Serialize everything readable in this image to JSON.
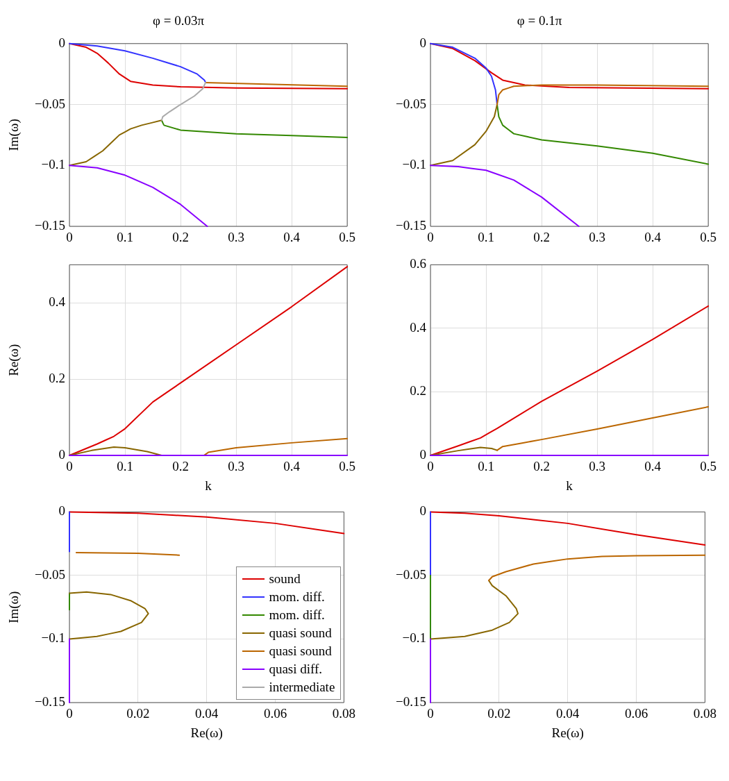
{
  "chart_data": [
    {
      "type": "line",
      "title": "φ = 0.03π",
      "ylabel": "Im(ω)",
      "xlim": [
        0,
        0.5
      ],
      "ylim": [
        -0.15,
        0
      ],
      "xticks": [
        0,
        0.1,
        0.2,
        0.3,
        0.4,
        0.5
      ],
      "yticks": [
        -0.15,
        -0.1,
        -0.05,
        0
      ],
      "grid": true,
      "series": [
        {
          "color": "#dd0000",
          "x": [
            0,
            0.03,
            0.05,
            0.07,
            0.09,
            0.11,
            0.15,
            0.2,
            0.3,
            0.5
          ],
          "values": [
            0,
            -0.003,
            -0.008,
            -0.016,
            -0.025,
            -0.031,
            -0.034,
            -0.0355,
            -0.0365,
            -0.037
          ]
        },
        {
          "color": "#3333ff",
          "x": [
            0,
            0.05,
            0.1,
            0.15,
            0.2,
            0.23,
            0.243,
            0.245
          ],
          "values": [
            0,
            -0.002,
            -0.006,
            -0.012,
            -0.019,
            -0.025,
            -0.03,
            -0.032
          ]
        },
        {
          "color": "#338800",
          "x": [
            0.166,
            0.17,
            0.2,
            0.3,
            0.4,
            0.5
          ],
          "values": [
            -0.063,
            -0.067,
            -0.071,
            -0.074,
            -0.0755,
            -0.077
          ]
        },
        {
          "color": "#886600",
          "x": [
            0,
            0.03,
            0.06,
            0.09,
            0.11,
            0.13,
            0.166
          ],
          "values": [
            -0.1,
            -0.097,
            -0.088,
            -0.075,
            -0.07,
            -0.067,
            -0.063
          ]
        },
        {
          "color": "#bb6600",
          "x": [
            0.245,
            0.5
          ],
          "values": [
            -0.032,
            -0.035
          ]
        },
        {
          "color": "#8800ff",
          "x": [
            0,
            0.05,
            0.1,
            0.15,
            0.2,
            0.248
          ],
          "values": [
            -0.1,
            -0.102,
            -0.108,
            -0.118,
            -0.132,
            -0.15
          ]
        },
        {
          "color": "#aaaaaa",
          "x": [
            0.245,
            0.24,
            0.225,
            0.2,
            0.18,
            0.168,
            0.166
          ],
          "values": [
            -0.032,
            -0.037,
            -0.043,
            -0.05,
            -0.056,
            -0.06,
            -0.063
          ]
        }
      ]
    },
    {
      "type": "line",
      "title": "φ = 0.1π",
      "xlim": [
        0,
        0.5
      ],
      "ylim": [
        -0.15,
        0
      ],
      "xticks": [
        0,
        0.1,
        0.2,
        0.3,
        0.4,
        0.5
      ],
      "yticks": [
        -0.15,
        -0.1,
        -0.05,
        0
      ],
      "grid": true,
      "series": [
        {
          "color": "#dd0000",
          "x": [
            0,
            0.04,
            0.08,
            0.11,
            0.13,
            0.17,
            0.25,
            0.5
          ],
          "values": [
            0,
            -0.004,
            -0.014,
            -0.024,
            -0.03,
            -0.034,
            -0.036,
            -0.037
          ]
        },
        {
          "color": "#3333ff",
          "x": [
            0,
            0.04,
            0.08,
            0.1,
            0.11,
            0.117,
            0.12
          ],
          "values": [
            0,
            -0.003,
            -0.012,
            -0.02,
            -0.027,
            -0.038,
            -0.05
          ]
        },
        {
          "color": "#338800",
          "x": [
            0.12,
            0.123,
            0.13,
            0.15,
            0.2,
            0.3,
            0.4,
            0.5
          ],
          "values": [
            -0.05,
            -0.06,
            -0.067,
            -0.074,
            -0.079,
            -0.084,
            -0.09,
            -0.099
          ]
        },
        {
          "color": "#886600",
          "x": [
            0,
            0.04,
            0.08,
            0.1,
            0.115,
            0.12
          ],
          "values": [
            -0.1,
            -0.096,
            -0.083,
            -0.072,
            -0.06,
            -0.05
          ]
        },
        {
          "color": "#bb6600",
          "x": [
            0.12,
            0.123,
            0.13,
            0.15,
            0.2,
            0.3,
            0.5
          ],
          "values": [
            -0.05,
            -0.042,
            -0.038,
            -0.035,
            -0.034,
            -0.034,
            -0.035
          ]
        },
        {
          "color": "#8800ff",
          "x": [
            0,
            0.05,
            0.1,
            0.15,
            0.2,
            0.267
          ],
          "values": [
            -0.1,
            -0.101,
            -0.104,
            -0.112,
            -0.126,
            -0.15
          ]
        }
      ]
    },
    {
      "type": "line",
      "xlabel": "k",
      "ylabel": "Re(ω)",
      "xlim": [
        0,
        0.5
      ],
      "ylim": [
        0,
        0.5
      ],
      "xticks": [
        0,
        0.1,
        0.2,
        0.3,
        0.4,
        0.5
      ],
      "yticks": [
        0,
        0.2,
        0.4
      ],
      "grid": true,
      "series": [
        {
          "color": "#dd0000",
          "x": [
            0,
            0.05,
            0.08,
            0.1,
            0.15,
            0.2,
            0.3,
            0.4,
            0.5
          ],
          "values": [
            0,
            0.03,
            0.05,
            0.07,
            0.14,
            0.19,
            0.29,
            0.39,
            0.495
          ]
        },
        {
          "color": "#886600",
          "x": [
            0,
            0.04,
            0.08,
            0.1,
            0.14,
            0.166
          ],
          "values": [
            0,
            0.013,
            0.022,
            0.02,
            0.01,
            0
          ]
        },
        {
          "color": "#bb6600",
          "x": [
            0.242,
            0.25,
            0.3,
            0.4,
            0.5
          ],
          "values": [
            0,
            0.008,
            0.02,
            0.033,
            0.044
          ]
        },
        {
          "color": "#8800ff",
          "x": [
            0,
            0.5
          ],
          "values": [
            0,
            0
          ]
        }
      ]
    },
    {
      "type": "line",
      "xlabel": "k",
      "xlim": [
        0,
        0.5
      ],
      "ylim": [
        0,
        0.6
      ],
      "xticks": [
        0,
        0.1,
        0.2,
        0.3,
        0.4,
        0.5
      ],
      "yticks": [
        0,
        0.2,
        0.4,
        0.6
      ],
      "grid": true,
      "series": [
        {
          "color": "#dd0000",
          "x": [
            0,
            0.05,
            0.09,
            0.12,
            0.2,
            0.3,
            0.4,
            0.5
          ],
          "values": [
            0,
            0.03,
            0.055,
            0.085,
            0.17,
            0.265,
            0.365,
            0.47
          ]
        },
        {
          "color": "#886600",
          "x": [
            0,
            0.05,
            0.09,
            0.11,
            0.12
          ],
          "values": [
            0,
            0.015,
            0.025,
            0.022,
            0.016
          ]
        },
        {
          "color": "#bb6600",
          "x": [
            0.12,
            0.13,
            0.2,
            0.3,
            0.4,
            0.5
          ],
          "values": [
            0.016,
            0.028,
            0.05,
            0.083,
            0.118,
            0.153
          ]
        },
        {
          "color": "#8800ff",
          "x": [
            0,
            0.5
          ],
          "values": [
            0,
            0
          ]
        }
      ]
    },
    {
      "type": "line",
      "xlabel": "Re(ω)",
      "ylabel": "Im(ω)",
      "xlim": [
        0,
        0.08
      ],
      "ylim": [
        -0.15,
        0
      ],
      "xticks": [
        0,
        0.02,
        0.04,
        0.06,
        0.08
      ],
      "yticks": [
        -0.15,
        -0.1,
        -0.05,
        0
      ],
      "grid": true,
      "legend": "bottom right",
      "series": [
        {
          "name": "sound",
          "color": "#dd0000",
          "x": [
            0,
            0.02,
            0.04,
            0.06,
            0.08
          ],
          "values": [
            0,
            -0.001,
            -0.004,
            -0.009,
            -0.017
          ]
        },
        {
          "name": "mom. diff.",
          "color": "#3333ff",
          "x": [
            0,
            0
          ],
          "values": [
            0,
            -0.032
          ]
        },
        {
          "name": "mom. diff.",
          "color": "#338800",
          "x": [
            0,
            0
          ],
          "values": [
            -0.063,
            -0.077
          ]
        },
        {
          "name": "quasi sound",
          "color": "#886600",
          "x": [
            0,
            0.005,
            0.012,
            0.018,
            0.022,
            0.023,
            0.021,
            0.015,
            0.008,
            0
          ],
          "values": [
            -0.064,
            -0.063,
            -0.065,
            -0.07,
            -0.076,
            -0.08,
            -0.087,
            -0.094,
            -0.098,
            -0.1
          ]
        },
        {
          "name": "quasi sound",
          "color": "#bb6600",
          "x": [
            0.002,
            0.02,
            0.032
          ],
          "values": [
            -0.032,
            -0.0325,
            -0.034
          ]
        },
        {
          "name": "quasi diff.",
          "color": "#8800ff",
          "x": [
            0,
            0
          ],
          "values": [
            -0.1,
            -0.15
          ]
        },
        {
          "name": "intermediate",
          "color": "#aaaaaa",
          "x": [
            0,
            0
          ],
          "values": [
            -0.032,
            -0.063
          ]
        }
      ]
    },
    {
      "type": "line",
      "xlabel": "Re(ω)",
      "xlim": [
        0,
        0.08
      ],
      "ylim": [
        -0.15,
        0
      ],
      "xticks": [
        0,
        0.02,
        0.04,
        0.06,
        0.08
      ],
      "yticks": [
        -0.15,
        -0.1,
        -0.05,
        0
      ],
      "grid": true,
      "series": [
        {
          "color": "#dd0000",
          "x": [
            0,
            0.01,
            0.02,
            0.04,
            0.06,
            0.08
          ],
          "values": [
            0,
            -0.001,
            -0.003,
            -0.009,
            -0.018,
            -0.026
          ]
        },
        {
          "color": "#3333ff",
          "x": [
            0,
            0
          ],
          "values": [
            0,
            -0.05
          ]
        },
        {
          "color": "#338800",
          "x": [
            0,
            0
          ],
          "values": [
            -0.05,
            -0.1
          ]
        },
        {
          "color": "#886600",
          "x": [
            0,
            0.01,
            0.018,
            0.023,
            0.0255,
            0.025,
            0.022,
            0.018,
            0.017
          ],
          "values": [
            -0.1,
            -0.098,
            -0.093,
            -0.087,
            -0.08,
            -0.076,
            -0.066,
            -0.058,
            -0.054
          ]
        },
        {
          "color": "#bb6600",
          "x": [
            0.017,
            0.018,
            0.022,
            0.03,
            0.04,
            0.05,
            0.06,
            0.08
          ],
          "values": [
            -0.054,
            -0.051,
            -0.047,
            -0.041,
            -0.037,
            -0.035,
            -0.0345,
            -0.034
          ]
        },
        {
          "color": "#8800ff",
          "x": [
            0,
            0
          ],
          "values": [
            -0.1,
            -0.15
          ]
        }
      ]
    }
  ]
}
